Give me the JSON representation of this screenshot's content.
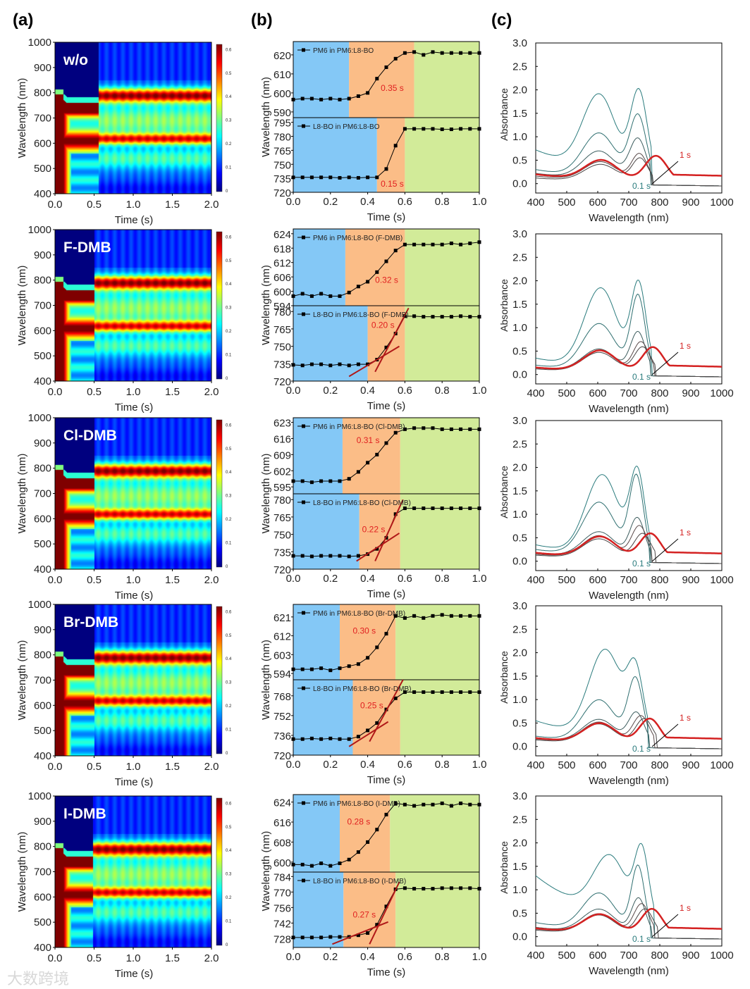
{
  "panel_letters": [
    "(a)",
    "(b)",
    "(c)"
  ],
  "watermark": "大数跨境",
  "colors": {
    "phase_blue": "#84c8f6",
    "phase_orange": "#fbbd87",
    "phase_green": "#d2eb99",
    "fit_line": "#b01818",
    "annot": "#e02020",
    "teal": "#2a7b7d",
    "red_curve": "#d42222"
  },
  "chart_data": [
    {
      "type": "heatmap",
      "panel": "a",
      "xlabel": "Time (s)",
      "ylabel": "Wavelength (nm)",
      "xlim": [
        0,
        2.0
      ],
      "ylim": [
        400,
        1000
      ],
      "xticks": [
        "0.0",
        "0.5",
        "1.0",
        "1.5",
        "2.0"
      ],
      "yticks": [
        "400",
        "500",
        "600",
        "700",
        "800",
        "900",
        "1000"
      ],
      "colorbar": {
        "range": [
          0,
          0.6
        ],
        "ticks": [
          "0",
          "0.1",
          "0.2",
          "0.3",
          "0.4",
          "0.5",
          "0.6"
        ],
        "colormap": "jet"
      },
      "samples": [
        {
          "label": "w/o",
          "transition_s": 0.55
        },
        {
          "label": "F-DMB",
          "transition_s": 0.5
        },
        {
          "label": "Cl-DMB",
          "transition_s": 0.5
        },
        {
          "label": "Br-DMB",
          "transition_s": 0.5
        },
        {
          "label": "I-DMB",
          "transition_s": 0.48
        }
      ]
    },
    {
      "type": "line",
      "panel": "b",
      "xlabel": "Time (s)",
      "ylabel": "Wavelength (nm)",
      "xlim": [
        0,
        1.0
      ],
      "xticks": [
        "0.0",
        "0.2",
        "0.4",
        "0.6",
        "0.8",
        "1.0"
      ],
      "x": [
        0,
        0.05,
        0.1,
        0.15,
        0.2,
        0.25,
        0.3,
        0.35,
        0.4,
        0.45,
        0.5,
        0.55,
        0.6,
        0.65,
        0.7,
        0.75,
        0.8,
        0.85,
        0.9,
        0.95,
        1.0
      ],
      "rows": [
        {
          "top": {
            "legend": "PM6 in PM6:L8-BO",
            "ylim": [
              587,
              627
            ],
            "yticks": [
              590,
              600,
              610,
              620
            ],
            "phases": [
              0.3,
              0.65
            ],
            "annotation": "0.35 s",
            "annot_at": [
              0.47,
              601
            ],
            "y": [
              596.5,
              597,
              597,
              596.5,
              597,
              596.5,
              597,
              598.3,
              600,
              607.5,
              613.5,
              618,
              621,
              621.5,
              620,
              621.5,
              621,
              621,
              621,
              621,
              621
            ]
          },
          "bottom": {
            "legend": "L8-BO in PM6:L8-BO",
            "ylim": [
              720,
              800
            ],
            "yticks": [
              720,
              735,
              750,
              765,
              780,
              795
            ],
            "phases": [
              0.45,
              0.6
            ],
            "annotation": "0.15 s",
            "annot_at": [
              0.47,
              726
            ],
            "y": [
              736,
              736,
              736,
              736,
              736,
              735.5,
              736,
              735.5,
              736,
              736,
              745,
              770,
              788,
              788,
              788,
              788,
              787.5,
              787.5,
              788,
              788,
              788
            ]
          }
        },
        {
          "top": {
            "legend": "PM6 in PM6:L8-BO (F-DMB)",
            "ylim": [
              594,
              626
            ],
            "yticks": [
              594,
              600,
              606,
              612,
              618,
              624
            ],
            "phases": [
              0.28,
              0.6
            ],
            "annotation": "0.32 s",
            "annot_at": [
              0.44,
              603.5
            ],
            "y": [
              598,
              599,
              598,
              599,
              598,
              598,
              599.5,
              602,
              604,
              608,
              612.5,
              617,
              619.5,
              619.5,
              619.5,
              619.5,
              619.5,
              620,
              619.5,
              620,
              620.5
            ]
          },
          "bottom": {
            "legend": "L8-BO in PM6:L8-BO (F-DMB)",
            "ylim": [
              720,
              785
            ],
            "yticks": [
              720,
              735,
              750,
              765,
              780
            ],
            "phases": [
              0.4,
              0.6
            ],
            "annotation": "0.20 s",
            "annot_at": [
              0.42,
              766
            ],
            "y": [
              734,
              733.5,
              734.5,
              734.5,
              733.5,
              734.5,
              733.5,
              734.5,
              734.5,
              738.5,
              749,
              761,
              776,
              776,
              775.5,
              775.5,
              775.5,
              775.5,
              776,
              775.5,
              775.5
            ],
            "fits": [
              [
                [
                  0.3,
                  724
                ],
                [
                  0.57,
                  750
                ]
              ],
              [
                [
                  0.44,
                  728
                ],
                [
                  0.62,
                  783
                ]
              ]
            ]
          }
        },
        {
          "top": {
            "legend": "PM6 in PM6:L8-BO (Cl-DMB)",
            "ylim": [
              592,
              625
            ],
            "yticks": [
              595,
              602,
              609,
              616,
              623
            ],
            "phases": [
              0.265,
              0.575
            ],
            "annotation": "0.31 s",
            "annot_at": [
              0.34,
              614
            ],
            "y": [
              597.5,
              597.5,
              597,
              597.5,
              597.5,
              597.5,
              598.5,
              601.5,
              605.5,
              609,
              614,
              618.5,
              620,
              620.5,
              620.5,
              620.5,
              620,
              620,
              620,
              620,
              620
            ]
          },
          "bottom": {
            "legend": "L8-BO in PM6:L8-BO (Cl-DMB)",
            "ylim": [
              720,
              785
            ],
            "yticks": [
              720,
              735,
              750,
              765,
              780
            ],
            "phases": [
              0.355,
              0.575
            ],
            "annotation": "0.22 s",
            "annot_at": [
              0.37,
              752
            ],
            "y": [
              731.5,
              731.5,
              731,
              731.5,
              731.5,
              731.5,
              731,
              731.5,
              733,
              737.5,
              747,
              767.5,
              772.5,
              772.5,
              772.5,
              772.5,
              772.5,
              772.5,
              772.5,
              772.5,
              772.5
            ],
            "fits": [
              [
                [
                  0.34,
                  727
                ],
                [
                  0.57,
                  751
                ]
              ],
              [
                [
                  0.44,
                  727
                ],
                [
                  0.59,
                  780
                ]
              ]
            ]
          }
        },
        {
          "top": {
            "legend": "PM6 in PM6:L8-BO (Br-DMB)",
            "ylim": [
              591,
              627
            ],
            "yticks": [
              594,
              603,
              612,
              621
            ],
            "phases": [
              0.25,
              0.55
            ],
            "annotation": "0.30 s",
            "annot_at": [
              0.32,
              613
            ],
            "y": [
              596,
              596,
              596,
              596.5,
              595.5,
              596.5,
              597.5,
              598.5,
              601.5,
              606.5,
              613,
              621.5,
              620.5,
              621.5,
              620.5,
              621.5,
              622,
              621.5,
              621.5,
              621.5,
              621.5
            ]
          },
          "bottom": {
            "legend": "L8-BO in PM6:L8-BO (Br-DMB)",
            "ylim": [
              720,
              781
            ],
            "yticks": [
              720,
              736,
              752,
              768
            ],
            "phases": [
              0.32,
              0.575
            ],
            "annotation": "0.25 s",
            "annot_at": [
              0.36,
              758
            ],
            "y": [
              733,
              733,
              733.5,
              733,
              733.5,
              733,
              733,
              735,
              740,
              746,
              757,
              766,
              771,
              771,
              771,
              771,
              771,
              771,
              771,
              771,
              771
            ],
            "fits": [
              [
                [
                  0.3,
                  727
                ],
                [
                  0.51,
                  747
                ]
              ],
              [
                [
                  0.41,
                  731
                ],
                [
                  0.59,
                  781
                ]
              ]
            ]
          }
        },
        {
          "top": {
            "legend": "PM6 in PM6:L8-BO (I-DMB)",
            "ylim": [
              596,
              627
            ],
            "yticks": [
              600,
              608,
              616,
              624
            ],
            "phases": [
              0.25,
              0.52
            ],
            "annotation": "0.28 s",
            "annot_at": [
              0.29,
              615
            ],
            "y": [
              599,
              599,
              598.5,
              599.5,
              598.5,
              599.5,
              601,
              604,
              608,
              613,
              619,
              623.5,
              623,
              622.5,
              623,
              623,
              623.5,
              622.5,
              623.5,
              623,
              623
            ]
          },
          "bottom": {
            "legend": "L8-BO in PM6:L8-BO (I-DMB)",
            "ylim": [
              720,
              788
            ],
            "yticks": [
              728,
              742,
              756,
              770,
              784
            ],
            "phases": [
              0.27,
              0.55
            ],
            "annotation": "0.27 s",
            "annot_at": [
              0.32,
              747
            ],
            "y": [
              729,
              729,
              729,
              729,
              729.5,
              729.5,
              729.5,
              731,
              733,
              740.5,
              757,
              772.5,
              773.5,
              773,
              773,
              773,
              773.5,
              773.5,
              773.5,
              773.5,
              773
            ]
          },
          "fits_b": [
            [
              [
                0.21,
                723
              ],
              [
                0.51,
                743
              ]
            ],
            [
              [
                0.41,
                723
              ],
              [
                0.57,
                779
              ]
            ]
          ]
        }
      ]
    },
    {
      "type": "line",
      "panel": "c",
      "xlabel": "Wavelength (nm)",
      "ylabel": "Absorbance",
      "xlim": [
        400,
        1000
      ],
      "ylim": [
        -0.2,
        3.0
      ],
      "xticks": [
        "400",
        "500",
        "600",
        "700",
        "800",
        "900",
        "1000"
      ],
      "yticks": [
        "0.0",
        "0.5",
        "1.0",
        "1.5",
        "2.0",
        "2.5",
        "3.0"
      ],
      "label_end": "1 s",
      "label_start": "0.1 s",
      "model": "absorbance = base*exp(-(wl-400)/250) + a1*exp(-((wl-p1)/75)^2) + a2*exp(-((wl-p2)/w2)^2)",
      "rows": [
        {
          "curves": [
            {
              "time": "0.1 s",
              "base": 0.72,
              "a1": 1.6,
              "p1": 605,
              "a2": 1.75,
              "p2": 733,
              "w2": 38
            },
            {
              "base": 0.3,
              "a1": 0.95,
              "p1": 605,
              "a2": 1.35,
              "p2": 730,
              "w2": 38
            },
            {
              "base": 0.22,
              "a1": 0.6,
              "p1": 605,
              "a2": 0.88,
              "p2": 730,
              "w2": 38
            },
            {
              "base": 0.16,
              "a1": 0.4,
              "p1": 610,
              "a2": 0.58,
              "p2": 735,
              "w2": 36
            },
            {
              "base": 0.12,
              "a1": 0.36,
              "p1": 610,
              "a2": 0.5,
              "p2": 737,
              "w2": 36
            },
            {
              "time": "1 s",
              "base": 0.2,
              "a1": 0.42,
              "p1": 612,
              "a2": 0.55,
              "p2": 788,
              "w2": 50
            }
          ]
        },
        {
          "curves": [
            {
              "time": "0.1 s",
              "base": 0.35,
              "a1": 1.7,
              "p1": 610,
              "a2": 1.8,
              "p2": 732,
              "w2": 34
            },
            {
              "base": 0.2,
              "a1": 1.0,
              "p1": 605,
              "a2": 1.6,
              "p2": 730,
              "w2": 32
            },
            {
              "base": 0.15,
              "a1": 0.48,
              "p1": 605,
              "a2": 0.85,
              "p2": 730,
              "w2": 34
            },
            {
              "base": 0.14,
              "a1": 0.45,
              "p1": 605,
              "a2": 0.65,
              "p2": 740,
              "w2": 36
            },
            {
              "base": 0.12,
              "a1": 0.42,
              "p1": 605,
              "a2": 0.55,
              "p2": 745,
              "w2": 38
            },
            {
              "time": "1 s",
              "base": 0.15,
              "a1": 0.45,
              "p1": 608,
              "a2": 0.55,
              "p2": 778,
              "w2": 48
            }
          ]
        },
        {
          "curves": [
            {
              "time": "0.1 s",
              "base": 0.35,
              "a1": 1.7,
              "p1": 615,
              "a2": 1.75,
              "p2": 728,
              "w2": 34
            },
            {
              "base": 0.25,
              "a1": 1.15,
              "p1": 605,
              "a2": 1.7,
              "p2": 725,
              "w2": 32
            },
            {
              "base": 0.18,
              "a1": 0.55,
              "p1": 605,
              "a2": 0.85,
              "p2": 728,
              "w2": 34
            },
            {
              "base": 0.15,
              "a1": 0.48,
              "p1": 605,
              "a2": 0.7,
              "p2": 735,
              "w2": 36
            },
            {
              "base": 0.13,
              "a1": 0.42,
              "p1": 605,
              "a2": 0.55,
              "p2": 745,
              "w2": 38
            },
            {
              "time": "1 s",
              "base": 0.18,
              "a1": 0.45,
              "p1": 608,
              "a2": 0.55,
              "p2": 770,
              "w2": 48
            }
          ]
        },
        {
          "curves": [
            {
              "time": "0.1 s",
              "base": 0.55,
              "a1": 1.85,
              "p1": 625,
              "a2": 1.35,
              "p2": 722,
              "w2": 36
            },
            {
              "base": 0.22,
              "a1": 0.9,
              "p1": 605,
              "a2": 1.35,
              "p2": 722,
              "w2": 34
            },
            {
              "base": 0.18,
              "a1": 0.5,
              "p1": 605,
              "a2": 0.65,
              "p2": 725,
              "w2": 36
            },
            {
              "base": 0.16,
              "a1": 0.45,
              "p1": 605,
              "a2": 0.6,
              "p2": 740,
              "w2": 38
            },
            {
              "base": 0.14,
              "a1": 0.42,
              "p1": 605,
              "a2": 0.55,
              "p2": 750,
              "w2": 40
            },
            {
              "time": "1 s",
              "base": 0.18,
              "a1": 0.42,
              "p1": 608,
              "a2": 0.55,
              "p2": 768,
              "w2": 48
            }
          ]
        },
        {
          "curves": [
            {
              "time": "0.1 s",
              "base": 1.3,
              "a1": 1.25,
              "p1": 640,
              "a2": 1.45,
              "p2": 742,
              "w2": 32
            },
            {
              "base": 0.3,
              "a1": 0.8,
              "p1": 605,
              "a2": 1.4,
              "p2": 730,
              "w2": 30
            },
            {
              "base": 0.2,
              "a1": 0.5,
              "p1": 605,
              "a2": 0.75,
              "p2": 732,
              "w2": 32
            },
            {
              "base": 0.16,
              "a1": 0.42,
              "p1": 605,
              "a2": 0.65,
              "p2": 742,
              "w2": 36
            },
            {
              "base": 0.14,
              "a1": 0.4,
              "p1": 605,
              "a2": 0.55,
              "p2": 752,
              "w2": 38
            },
            {
              "time": "1 s",
              "base": 0.18,
              "a1": 0.4,
              "p1": 608,
              "a2": 0.55,
              "p2": 775,
              "w2": 48
            }
          ]
        }
      ]
    }
  ]
}
